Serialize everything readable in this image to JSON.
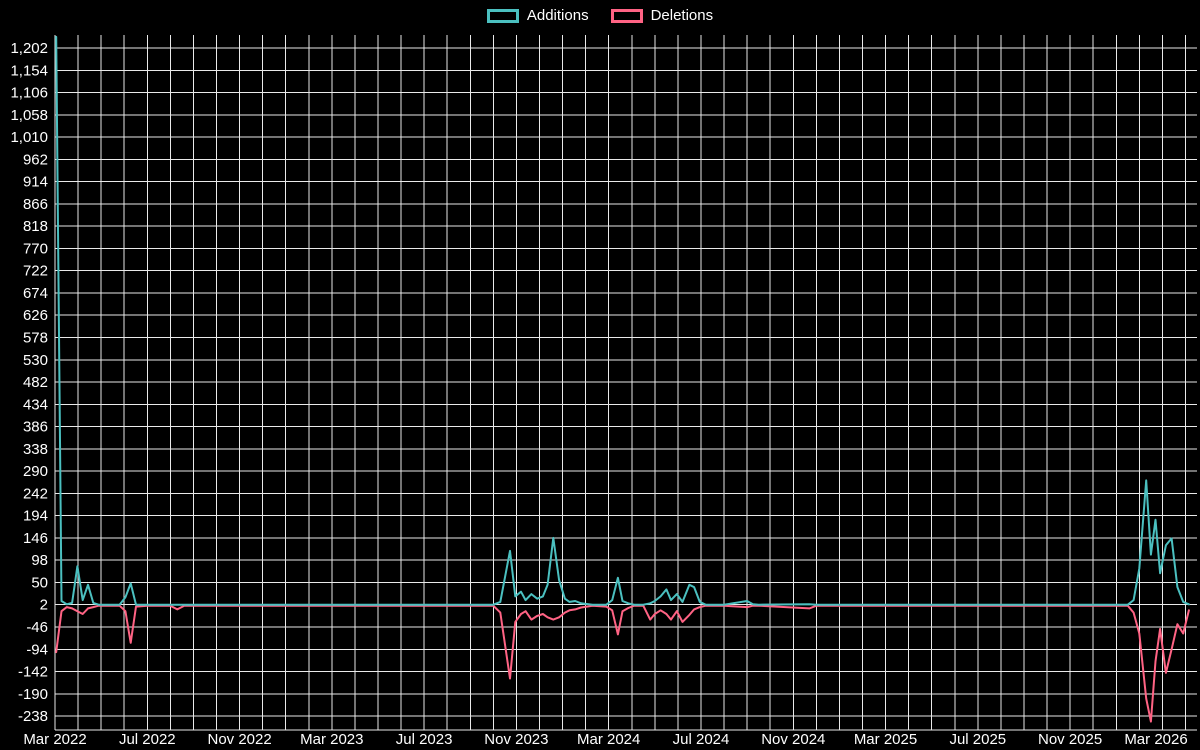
{
  "legend": {
    "position": "top",
    "items": [
      {
        "label": "Additions",
        "color": "#4bc0c0"
      },
      {
        "label": "Deletions",
        "color": "#ff6384"
      }
    ]
  },
  "colors": {
    "background": "#000000",
    "grid": "#e9e9e9",
    "text": "#ffffff",
    "additions": "#4bc0c0",
    "deletions": "#ff6384"
  },
  "chart_data": {
    "type": "line",
    "title": "",
    "xlabel": "",
    "ylabel": "",
    "grid": true,
    "legend_position": "top",
    "x_unit": "months since Mar 2022",
    "xlim": [
      0,
      49.5
    ],
    "ylim": [
      -268,
      1230
    ],
    "x_minor_step": 1,
    "x_tick_positions": [
      0,
      4,
      8,
      12,
      16,
      20,
      24,
      28,
      32,
      36,
      40,
      44,
      48
    ],
    "x_tick_labels": [
      "Mar 2022",
      "Jul 2022",
      "Nov 2022",
      "Mar 2023",
      "Jul 2023",
      "Nov 2023",
      "Mar 2024",
      "Jul 2024",
      "Nov 2024",
      "Mar 2025",
      "Jul 2025",
      "Nov 2025",
      "Mar 2026"
    ],
    "y_ticks": [
      -238,
      -190,
      -142,
      -94,
      -46,
      2,
      50,
      98,
      146,
      194,
      242,
      290,
      338,
      386,
      434,
      482,
      530,
      578,
      626,
      674,
      722,
      770,
      818,
      866,
      914,
      962,
      1010,
      1058,
      1106,
      1154,
      1202
    ],
    "series": [
      {
        "name": "Additions",
        "color": "#4bc0c0",
        "points": [
          [
            0.05,
            1226
          ],
          [
            0.28,
            10
          ],
          [
            0.51,
            3
          ],
          [
            0.74,
            6
          ],
          [
            0.97,
            85
          ],
          [
            1.2,
            12
          ],
          [
            1.43,
            45
          ],
          [
            1.66,
            6
          ],
          [
            1.89,
            2
          ],
          [
            2.35,
            2
          ],
          [
            2.8,
            2
          ],
          [
            3.05,
            18
          ],
          [
            3.28,
            48
          ],
          [
            3.51,
            2
          ],
          [
            4,
            2
          ],
          [
            5,
            2
          ],
          [
            5.3,
            2
          ],
          [
            5.6,
            2
          ],
          [
            8,
            2
          ],
          [
            12,
            2
          ],
          [
            16,
            2
          ],
          [
            19,
            2
          ],
          [
            19.3,
            8
          ],
          [
            19.72,
            118
          ],
          [
            19.95,
            20
          ],
          [
            20.2,
            30
          ],
          [
            20.4,
            12
          ],
          [
            20.65,
            25
          ],
          [
            20.9,
            15
          ],
          [
            21.15,
            20
          ],
          [
            21.35,
            45
          ],
          [
            21.6,
            146
          ],
          [
            21.85,
            55
          ],
          [
            22.1,
            15
          ],
          [
            22.3,
            8
          ],
          [
            22.55,
            10
          ],
          [
            22.8,
            5
          ],
          [
            23.3,
            2
          ],
          [
            23.9,
            2
          ],
          [
            24.15,
            12
          ],
          [
            24.4,
            60
          ],
          [
            24.6,
            10
          ],
          [
            24.85,
            5
          ],
          [
            25.1,
            2
          ],
          [
            25.5,
            2
          ],
          [
            25.8,
            5
          ],
          [
            26,
            10
          ],
          [
            26.25,
            20
          ],
          [
            26.5,
            35
          ],
          [
            26.7,
            12
          ],
          [
            26.95,
            25
          ],
          [
            27.2,
            8
          ],
          [
            27.5,
            45
          ],
          [
            27.7,
            40
          ],
          [
            27.95,
            8
          ],
          [
            28.2,
            2
          ],
          [
            29,
            2
          ],
          [
            30,
            10
          ],
          [
            30.25,
            3
          ],
          [
            30.5,
            2
          ],
          [
            32.7,
            3
          ],
          [
            33,
            2
          ],
          [
            35,
            2
          ],
          [
            38,
            2
          ],
          [
            41,
            2
          ],
          [
            44,
            2
          ],
          [
            46.5,
            2
          ],
          [
            46.75,
            12
          ],
          [
            47,
            80
          ],
          [
            47.3,
            270
          ],
          [
            47.5,
            110
          ],
          [
            47.7,
            185
          ],
          [
            47.9,
            70
          ],
          [
            48.15,
            130
          ],
          [
            48.4,
            145
          ],
          [
            48.65,
            40
          ],
          [
            48.9,
            8
          ],
          [
            49.15,
            3
          ]
        ]
      },
      {
        "name": "Deletions",
        "color": "#ff6384",
        "points": [
          [
            0.05,
            -100
          ],
          [
            0.28,
            -12
          ],
          [
            0.51,
            -3
          ],
          [
            0.74,
            -6
          ],
          [
            0.97,
            -12
          ],
          [
            1.2,
            -18
          ],
          [
            1.43,
            -6
          ],
          [
            1.66,
            -3
          ],
          [
            1.89,
            0
          ],
          [
            2.35,
            0
          ],
          [
            2.8,
            0
          ],
          [
            3.05,
            -12
          ],
          [
            3.28,
            -80
          ],
          [
            3.51,
            -2
          ],
          [
            4,
            0
          ],
          [
            5,
            0
          ],
          [
            5.3,
            -8
          ],
          [
            5.6,
            0
          ],
          [
            8,
            0
          ],
          [
            12,
            0
          ],
          [
            16,
            0
          ],
          [
            19,
            0
          ],
          [
            19.3,
            -15
          ],
          [
            19.72,
            -157
          ],
          [
            19.95,
            -35
          ],
          [
            20.2,
            -18
          ],
          [
            20.4,
            -12
          ],
          [
            20.65,
            -30
          ],
          [
            20.9,
            -22
          ],
          [
            21.15,
            -18
          ],
          [
            21.35,
            -25
          ],
          [
            21.6,
            -30
          ],
          [
            21.85,
            -25
          ],
          [
            22.1,
            -15
          ],
          [
            22.3,
            -10
          ],
          [
            22.55,
            -8
          ],
          [
            22.8,
            -4
          ],
          [
            23.3,
            0
          ],
          [
            23.9,
            -2
          ],
          [
            24.15,
            -10
          ],
          [
            24.4,
            -62
          ],
          [
            24.6,
            -12
          ],
          [
            24.85,
            -5
          ],
          [
            25.1,
            0
          ],
          [
            25.5,
            0
          ],
          [
            25.8,
            -30
          ],
          [
            26,
            -18
          ],
          [
            26.25,
            -10
          ],
          [
            26.5,
            -18
          ],
          [
            26.7,
            -30
          ],
          [
            26.95,
            -12
          ],
          [
            27.2,
            -35
          ],
          [
            27.5,
            -20
          ],
          [
            27.7,
            -8
          ],
          [
            27.95,
            -3
          ],
          [
            28.2,
            0
          ],
          [
            29,
            0
          ],
          [
            30,
            -3
          ],
          [
            30.25,
            0
          ],
          [
            30.5,
            0
          ],
          [
            32.7,
            -6
          ],
          [
            33,
            0
          ],
          [
            35,
            0
          ],
          [
            38,
            0
          ],
          [
            41,
            0
          ],
          [
            44,
            0
          ],
          [
            46.5,
            0
          ],
          [
            46.75,
            -15
          ],
          [
            47,
            -60
          ],
          [
            47.3,
            -200
          ],
          [
            47.5,
            -250
          ],
          [
            47.7,
            -120
          ],
          [
            47.9,
            -50
          ],
          [
            48.15,
            -145
          ],
          [
            48.4,
            -94
          ],
          [
            48.65,
            -40
          ],
          [
            48.9,
            -60
          ],
          [
            49.15,
            -10
          ]
        ]
      }
    ]
  }
}
